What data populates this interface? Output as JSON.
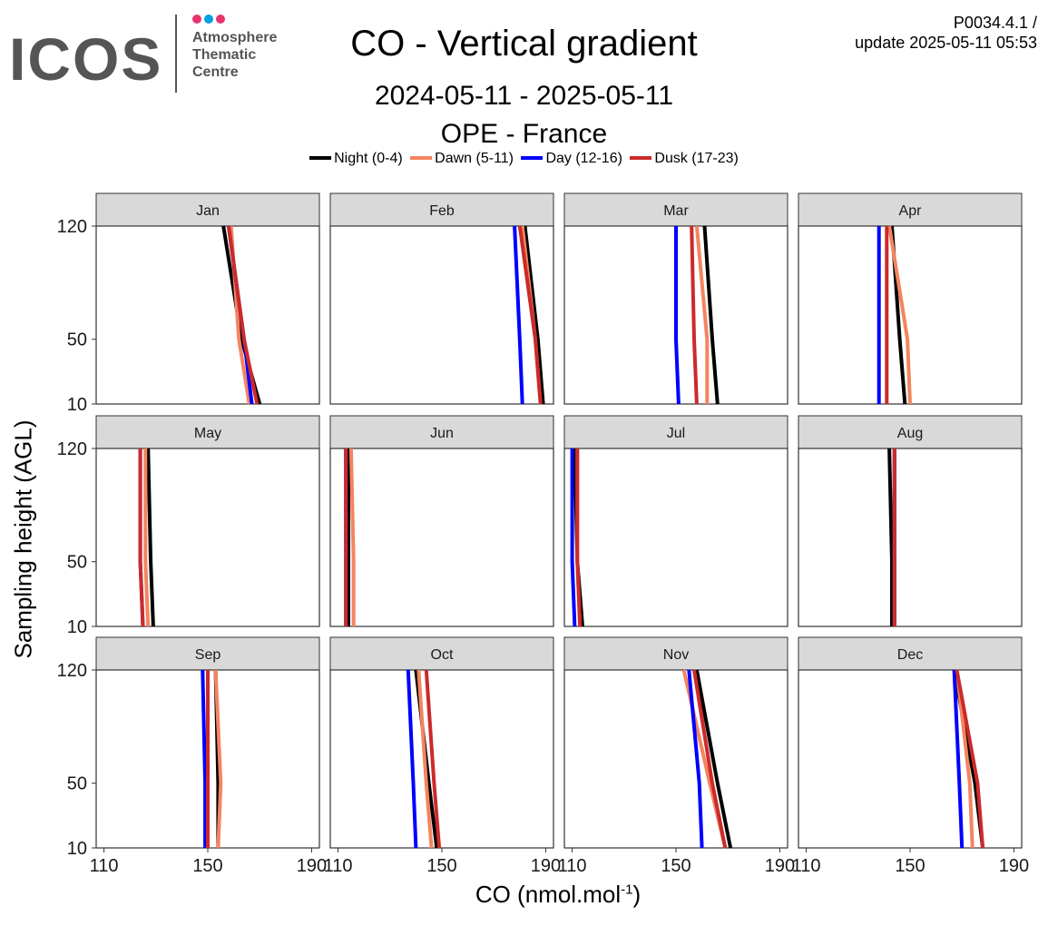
{
  "header": {
    "logo": {
      "wordmark": "ICOS",
      "subtitle_lines": [
        "Atmosphere",
        "Thematic",
        "Centre"
      ],
      "dot_colors": [
        "#e8336e",
        "#00a0e3",
        "#e8336e"
      ]
    },
    "title": "CO - Vertical gradient",
    "date_range": "2024-05-11 - 2025-05-11",
    "station": "OPE - France",
    "version_line1": "P0034.4.1 /",
    "version_line2": "update  2025-05-11 05:53"
  },
  "legend": [
    {
      "label": "Night (0-4)",
      "color": "#000000"
    },
    {
      "label": "Dawn (5-11)",
      "color": "#f4845f"
    },
    {
      "label": "Day (12-16)",
      "color": "#0000ff"
    },
    {
      "label": "Dusk (17-23)",
      "color": "#cc2a2a"
    }
  ],
  "chart_data": {
    "type": "line",
    "title": "CO - Vertical gradient",
    "xlabel": "CO (nmol.mol",
    "xlabel_superscript": "-1",
    "xlabel_suffix": ")",
    "ylabel": "Sampling height (AGL)",
    "xlim": [
      107,
      193
    ],
    "ylim": [
      10,
      120
    ],
    "xticks": [
      110,
      150,
      190
    ],
    "yticks": [
      10,
      50,
      120
    ],
    "heights": [
      10,
      50,
      120
    ],
    "grid": false,
    "legend_position": "top",
    "facet_strip_color": "#d9d9d9",
    "panels": [
      {
        "month": "Jan",
        "series": [
          {
            "name": "Night (0-4)",
            "values": [
              170,
              163,
              156
            ]
          },
          {
            "name": "Dawn (5-11)",
            "values": [
              166,
              162,
              159
            ]
          },
          {
            "name": "Day (12-16)",
            "values": [
              167,
              164,
              158
            ]
          },
          {
            "name": "Dusk (17-23)",
            "values": [
              169,
              164,
              158
            ]
          }
        ]
      },
      {
        "month": "Feb",
        "series": [
          {
            "name": "Night (0-4)",
            "values": [
              189,
              187,
              182
            ]
          },
          {
            "name": "Dawn (5-11)",
            "values": [
              188,
              186,
              181
            ]
          },
          {
            "name": "Day (12-16)",
            "values": [
              181,
              180,
              178
            ]
          },
          {
            "name": "Dusk (17-23)",
            "values": [
              188,
              186,
              180
            ]
          }
        ]
      },
      {
        "month": "Mar",
        "series": [
          {
            "name": "Night (0-4)",
            "values": [
              166,
              164,
              161
            ]
          },
          {
            "name": "Dawn (5-11)",
            "values": [
              162,
              162,
              158
            ]
          },
          {
            "name": "Day (12-16)",
            "values": [
              151,
              150,
              150
            ]
          },
          {
            "name": "Dusk (17-23)",
            "values": [
              158,
              157,
              156
            ]
          }
        ]
      },
      {
        "month": "Apr",
        "series": [
          {
            "name": "Night (0-4)",
            "values": [
              148,
              146,
              143
            ]
          },
          {
            "name": "Dawn (5-11)",
            "values": [
              150,
              149,
              142
            ]
          },
          {
            "name": "Day (12-16)",
            "values": [
              138,
              138,
              138
            ]
          },
          {
            "name": "Dusk (17-23)",
            "values": [
              141,
              141,
              141
            ]
          }
        ]
      },
      {
        "month": "May",
        "series": [
          {
            "name": "Night (0-4)",
            "values": [
              129,
              128,
              127
            ]
          },
          {
            "name": "Dawn (5-11)",
            "values": [
              127,
              126,
              126
            ]
          },
          {
            "name": "Day (12-16)",
            "values": [
              125,
              124,
              124
            ]
          },
          {
            "name": "Dusk (17-23)",
            "values": [
              125,
              124,
              124
            ]
          }
        ]
      },
      {
        "month": "Jun",
        "series": [
          {
            "name": "Night (0-4)",
            "values": [
              114,
              114,
              114
            ]
          },
          {
            "name": "Dawn (5-11)",
            "values": [
              116,
              116,
              115
            ]
          },
          {
            "name": "Day (12-16)",
            "values": [
              113,
              113,
              113
            ]
          },
          {
            "name": "Dusk (17-23)",
            "values": [
              113,
              113,
              113
            ]
          }
        ]
      },
      {
        "month": "Jul",
        "series": [
          {
            "name": "Night (0-4)",
            "values": [
              114,
              112,
              111
            ]
          },
          {
            "name": "Dawn (5-11)",
            "values": [
              113,
              112,
              112
            ]
          },
          {
            "name": "Day (12-16)",
            "values": [
              111,
              110,
              110
            ]
          },
          {
            "name": "Dusk (17-23)",
            "values": [
              113,
              112,
              112
            ]
          }
        ]
      },
      {
        "month": "Aug",
        "series": [
          {
            "name": "Night (0-4)",
            "values": [
              143,
              143,
              142
            ]
          },
          {
            "name": "Dawn (5-11)",
            "values": [
              144,
              144,
              144
            ]
          },
          {
            "name": "Day (12-16)",
            "values": [
              144,
              144,
              144
            ]
          },
          {
            "name": "Dusk (17-23)",
            "values": [
              144,
              144,
              144
            ]
          }
        ]
      },
      {
        "month": "Sep",
        "series": [
          {
            "name": "Night (0-4)",
            "values": [
              154,
              154,
              153
            ]
          },
          {
            "name": "Dawn (5-11)",
            "values": [
              154,
              155,
              153
            ]
          },
          {
            "name": "Day (12-16)",
            "values": [
              149,
              149,
              148
            ]
          },
          {
            "name": "Dusk (17-23)",
            "values": [
              150,
              150,
              150
            ]
          }
        ]
      },
      {
        "month": "Oct",
        "series": [
          {
            "name": "Night (0-4)",
            "values": [
              148,
              145,
              140
            ]
          },
          {
            "name": "Dawn (5-11)",
            "values": [
              146,
              144,
              141
            ]
          },
          {
            "name": "Day (12-16)",
            "values": [
              140,
              139,
              137
            ]
          },
          {
            "name": "Dusk (17-23)",
            "values": [
              149,
              147,
              144
            ]
          }
        ]
      },
      {
        "month": "Nov",
        "series": [
          {
            "name": "Night (0-4)",
            "values": [
              171,
              166,
              158
            ]
          },
          {
            "name": "Dawn (5-11)",
            "values": [
              169,
              163,
              153
            ]
          },
          {
            "name": "Day (12-16)",
            "values": [
              160,
              159,
              155
            ]
          },
          {
            "name": "Dusk (17-23)",
            "values": [
              169,
              164,
              157
            ]
          }
        ]
      },
      {
        "month": "Dec",
        "series": [
          {
            "name": "Night (0-4)",
            "values": [
              178,
              175,
              167
            ]
          },
          {
            "name": "Dawn (5-11)",
            "values": [
              174,
              173,
              168
            ]
          },
          {
            "name": "Day (12-16)",
            "values": [
              170,
              169,
              167
            ]
          },
          {
            "name": "Dusk (17-23)",
            "values": [
              178,
              176,
              168
            ]
          }
        ]
      }
    ]
  }
}
